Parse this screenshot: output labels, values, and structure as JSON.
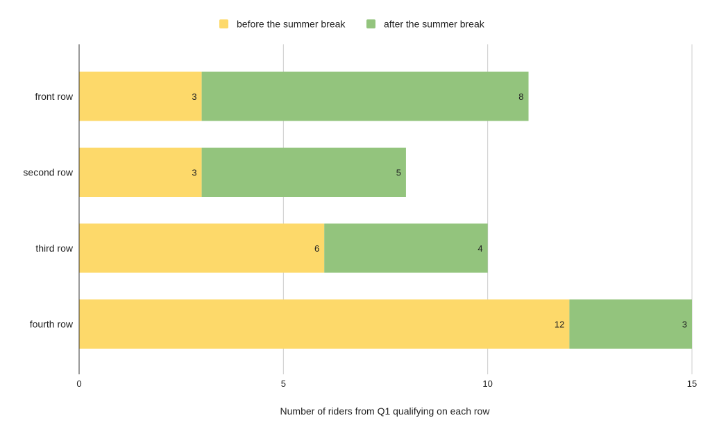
{
  "chart_data": {
    "type": "bar",
    "orientation": "horizontal",
    "stacked": true,
    "categories": [
      "front row",
      "second row",
      "third row",
      "fourth row"
    ],
    "series": [
      {
        "name": "before the summer break",
        "color": "#fdd96a",
        "values": [
          3,
          3,
          6,
          12
        ]
      },
      {
        "name": "after the summer break",
        "color": "#93c47d",
        "values": [
          8,
          5,
          4,
          3
        ]
      }
    ],
    "xlabel": "Number of riders from Q1 qualifying on each row",
    "ylabel": "",
    "xlim": [
      0,
      15
    ],
    "xticks": [
      0,
      5,
      10,
      15
    ],
    "grid": "vertical",
    "legend_position": "top",
    "data_labels": true
  }
}
